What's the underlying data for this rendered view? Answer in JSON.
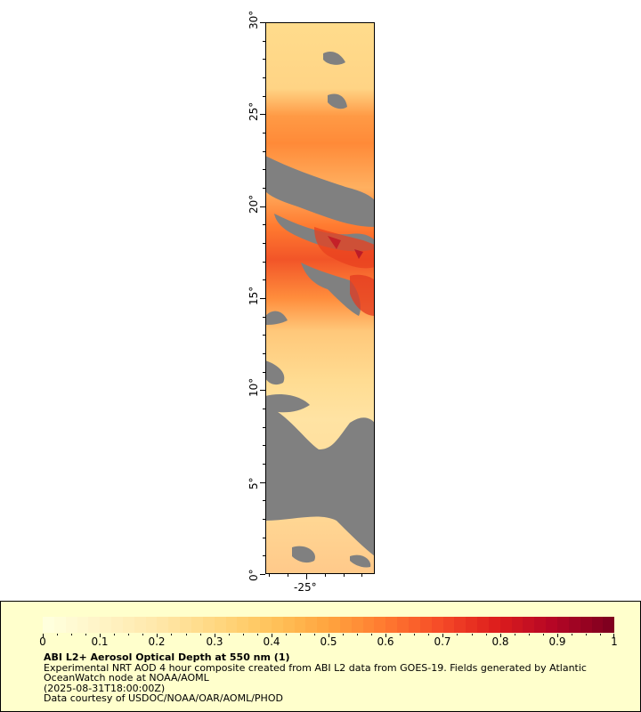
{
  "map": {
    "lat_ticks": [
      "0°",
      "5°",
      "10°",
      "15°",
      "20°",
      "25°",
      "30°"
    ],
    "lon_ticks": [
      "-25°"
    ],
    "lat_range": [
      0,
      30
    ],
    "lon_range": [
      -27.2,
      -21.3
    ],
    "nodata_color": "#808080"
  },
  "legend": {
    "title": "ABI L2+ Aerosol Optical Depth at 550 nm (1)",
    "description": "Experimental NRT AOD 4 hour composite created from ABI L2 data from GOES-19. Fields generated by Atlantic OceanWatch node at NOAA/AOML",
    "timestamp": "(2025-08-31T18:00:00Z)",
    "credit": "Data courtesy of USDOC/NOAA/OAR/AOML/PHOD",
    "colorbar_ticks": [
      "0",
      "0.1",
      "0.2",
      "0.3",
      "0.4",
      "0.5",
      "0.6",
      "0.7",
      "0.8",
      "0.9",
      "1"
    ],
    "colorbar_range": [
      0,
      1
    ],
    "colors": [
      "#ffffdd",
      "#fff3c4",
      "#ffe7a8",
      "#ffd780",
      "#ffc35a",
      "#ffa43e",
      "#ff7a30",
      "#f54a27",
      "#dd1d1d",
      "#b50625",
      "#80001f"
    ]
  }
}
